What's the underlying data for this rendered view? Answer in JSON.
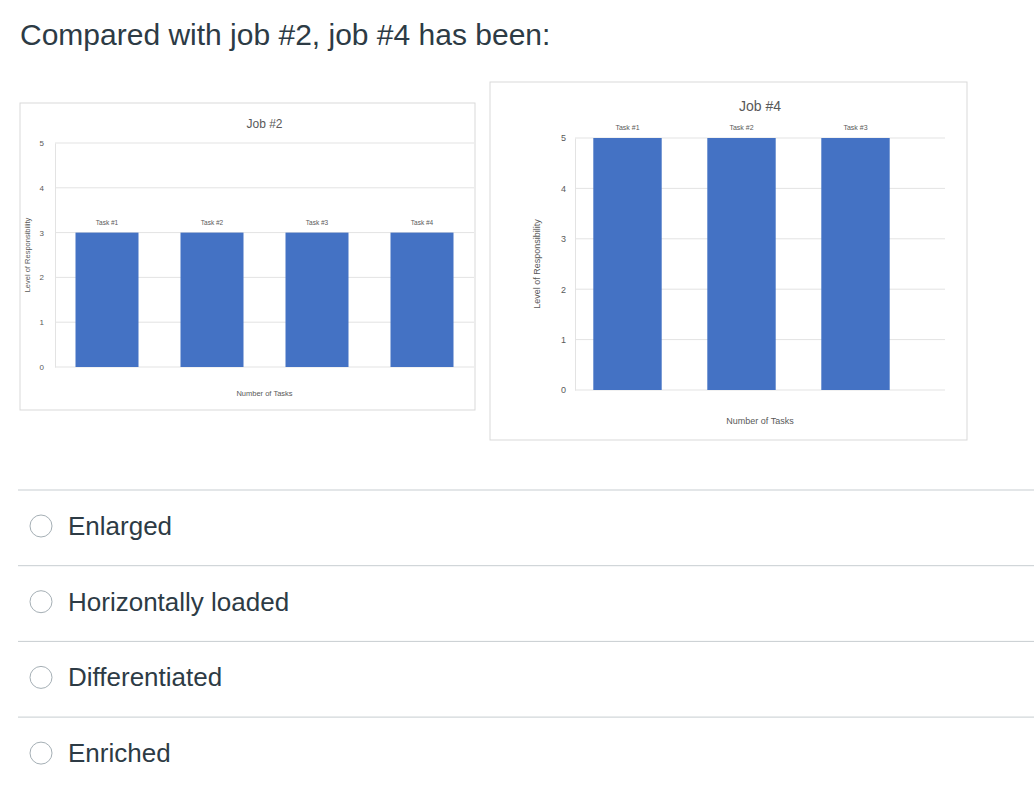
{
  "question": "Compared with job #2, job #4 has been:",
  "chart_data": [
    {
      "type": "bar",
      "title": "Job #2",
      "categories": [
        "Task #1",
        "Task #2",
        "Task #3",
        "Task #4"
      ],
      "values": [
        3,
        3,
        3,
        3
      ],
      "color": "#4472c4",
      "x_label": "Number of Tasks",
      "y_label": "Level of Responsibility",
      "ylim": [
        0,
        5
      ],
      "yticks": [
        0,
        1,
        2,
        3,
        4,
        5
      ],
      "grid": true
    },
    {
      "type": "bar",
      "title": "Job #4",
      "categories": [
        "Task #1",
        "Task #2",
        "Task #3"
      ],
      "values": [
        5,
        5,
        5
      ],
      "color": "#4472c4",
      "x_label": "Number of Tasks",
      "y_label": "Level of Responsibility",
      "ylim": [
        0,
        5
      ],
      "yticks": [
        0,
        1,
        2,
        3,
        4,
        5
      ],
      "grid": true
    }
  ],
  "options": [
    "Enlarged",
    "Horizontally loaded",
    "Differentiated",
    "Enriched"
  ]
}
